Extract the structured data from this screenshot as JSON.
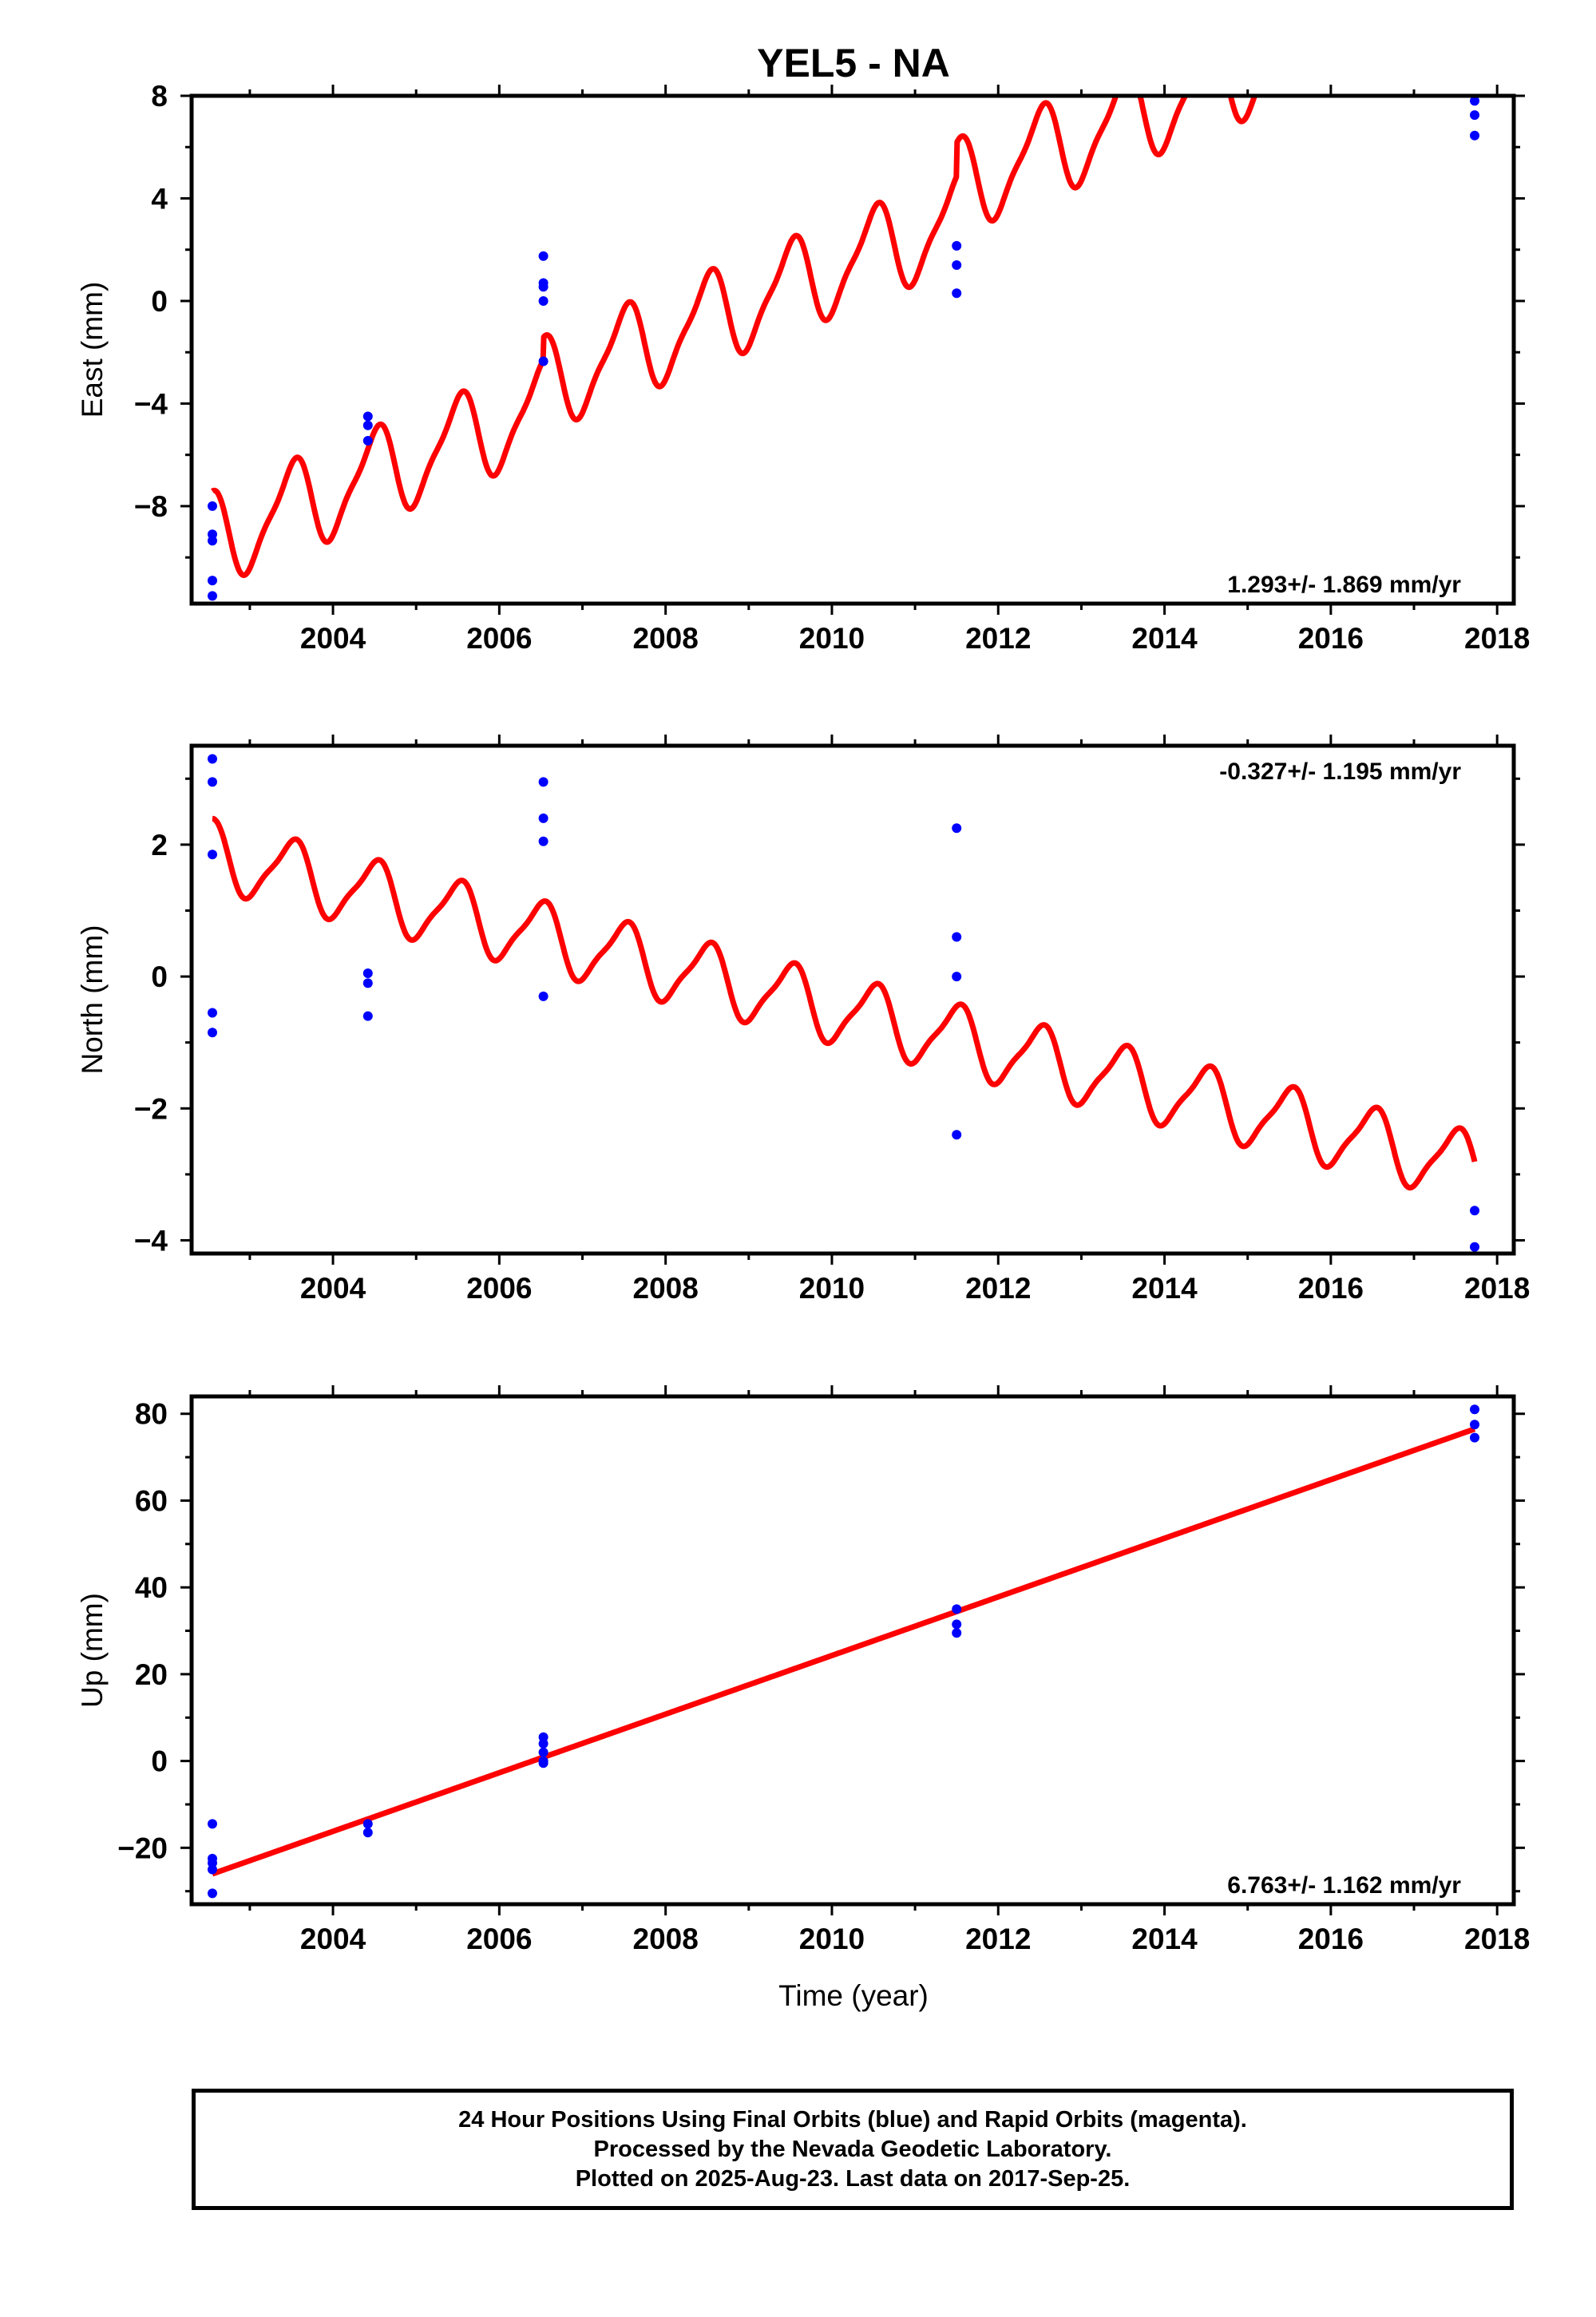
{
  "title": "YEL5 - NA",
  "colors": {
    "model": "#ff0000",
    "final_orbits": "#0000ff",
    "axis": "#000000"
  },
  "x_tick_labels": [
    "2004",
    "2006",
    "2008",
    "2010",
    "2012",
    "2014",
    "2016",
    "2018"
  ],
  "xlabel": "Time (year)",
  "caption": {
    "line1": "24 Hour Positions Using Final Orbits (blue) and Rapid Orbits (magenta).",
    "line2": "Processed by the Nevada Geodetic Laboratory.",
    "line3": "Plotted on 2025-Aug-23. Last data on 2017-Sep-25."
  },
  "chart_data": [
    {
      "type": "scatter",
      "component": "east",
      "ylabel": "East (mm)",
      "rate_label": "1.293+/- 1.869 mm/yr",
      "xlim": [
        2002.3,
        2018.2
      ],
      "ylim": [
        -11.8,
        8
      ],
      "yticks": [
        -8,
        -4,
        0,
        4,
        8
      ],
      "y_tick_labels": [
        "−8",
        "−4",
        "0",
        "4",
        "8"
      ],
      "series": [],
      "points": [
        {
          "x": 2002.55,
          "y": -8.0
        },
        {
          "x": 2002.55,
          "y": -9.1
        },
        {
          "x": 2002.55,
          "y": -9.35
        },
        {
          "x": 2002.55,
          "y": -10.9
        },
        {
          "x": 2002.55,
          "y": -11.5
        },
        {
          "x": 2004.42,
          "y": -4.5
        },
        {
          "x": 2004.42,
          "y": -4.85
        },
        {
          "x": 2004.42,
          "y": -5.45
        },
        {
          "x": 2006.53,
          "y": 1.75
        },
        {
          "x": 2006.53,
          "y": 0.7
        },
        {
          "x": 2006.53,
          "y": 0.55
        },
        {
          "x": 2006.53,
          "y": 0.0
        },
        {
          "x": 2006.53,
          "y": -2.35
        },
        {
          "x": 2011.5,
          "y": 2.15
        },
        {
          "x": 2011.5,
          "y": 1.4
        },
        {
          "x": 2011.5,
          "y": 0.3
        },
        {
          "x": 2017.73,
          "y": 7.8
        },
        {
          "x": 2017.73,
          "y": 7.25
        },
        {
          "x": 2017.73,
          "y": 6.45
        }
      ],
      "model": {
        "t0": 2002.55,
        "t1": 2017.73,
        "linear": [
          [
            2002.55,
            -9.3
          ],
          [
            2017.73,
            10.3
          ]
        ],
        "annual_amplitude": 1.7,
        "semiannual_amplitude": 0.45,
        "offsets": [
          [
            2006.53,
            0.9
          ],
          [
            2011.5,
            1.3
          ]
        ]
      }
    },
    {
      "type": "scatter",
      "component": "north",
      "ylabel": "North (mm)",
      "rate_label": "-0.327+/- 1.195 mm/yr",
      "xlim": [
        2002.3,
        2018.2
      ],
      "ylim": [
        -4.2,
        3.5
      ],
      "yticks": [
        -4,
        -2,
        0,
        2
      ],
      "y_tick_labels": [
        "−4",
        "−2",
        "0",
        "2"
      ],
      "series": [],
      "points": [
        {
          "x": 2002.55,
          "y": 3.3
        },
        {
          "x": 2002.55,
          "y": 2.95
        },
        {
          "x": 2002.55,
          "y": 1.85
        },
        {
          "x": 2002.55,
          "y": -0.55
        },
        {
          "x": 2002.55,
          "y": -0.85
        },
        {
          "x": 2004.42,
          "y": 0.05
        },
        {
          "x": 2004.42,
          "y": -0.1
        },
        {
          "x": 2004.42,
          "y": -0.6
        },
        {
          "x": 2006.53,
          "y": 2.95
        },
        {
          "x": 2006.53,
          "y": 2.4
        },
        {
          "x": 2006.53,
          "y": 2.05
        },
        {
          "x": 2006.53,
          "y": -0.3
        },
        {
          "x": 2011.5,
          "y": 2.25
        },
        {
          "x": 2011.5,
          "y": 0.6
        },
        {
          "x": 2011.5,
          "y": 0.0
        },
        {
          "x": 2011.5,
          "y": -2.4
        },
        {
          "x": 2017.73,
          "y": -3.55
        },
        {
          "x": 2017.73,
          "y": -4.1
        }
      ],
      "model": {
        "t0": 2002.55,
        "t1": 2017.73,
        "linear": [
          [
            2002.55,
            1.85
          ],
          [
            2017.73,
            -2.9
          ]
        ],
        "annual_amplitude": 0.5,
        "semiannual_amplitude": 0.12,
        "offsets": []
      }
    },
    {
      "type": "scatter",
      "component": "up",
      "ylabel": "Up (mm)",
      "rate_label": "6.763+/- 1.162 mm/yr",
      "xlim": [
        2002.3,
        2018.2
      ],
      "ylim": [
        -33,
        84
      ],
      "yticks": [
        -20,
        0,
        20,
        40,
        60,
        80
      ],
      "y_tick_labels": [
        "−20",
        "0",
        "20",
        "40",
        "60",
        "80"
      ],
      "series": [],
      "points": [
        {
          "x": 2002.55,
          "y": -14.5
        },
        {
          "x": 2002.55,
          "y": -22.5
        },
        {
          "x": 2002.55,
          "y": -23.5
        },
        {
          "x": 2002.55,
          "y": -25.0
        },
        {
          "x": 2002.55,
          "y": -30.5
        },
        {
          "x": 2004.42,
          "y": -14.5
        },
        {
          "x": 2004.42,
          "y": -16.5
        },
        {
          "x": 2006.53,
          "y": 5.5
        },
        {
          "x": 2006.53,
          "y": 4.0
        },
        {
          "x": 2006.53,
          "y": 2.0
        },
        {
          "x": 2006.53,
          "y": 0.0
        },
        {
          "x": 2006.53,
          "y": -0.5
        },
        {
          "x": 2011.5,
          "y": 35.0
        },
        {
          "x": 2011.5,
          "y": 31.5
        },
        {
          "x": 2011.5,
          "y": 29.5
        },
        {
          "x": 2017.73,
          "y": 81.0
        },
        {
          "x": 2017.73,
          "y": 77.5
        },
        {
          "x": 2017.73,
          "y": 74.5
        }
      ],
      "model": {
        "t0": 2002.55,
        "t1": 2017.73,
        "linear": [
          [
            2002.55,
            -26.0
          ],
          [
            2017.73,
            76.5
          ]
        ],
        "annual_amplitude": 0.0,
        "semiannual_amplitude": 0.0,
        "offsets": []
      }
    }
  ]
}
